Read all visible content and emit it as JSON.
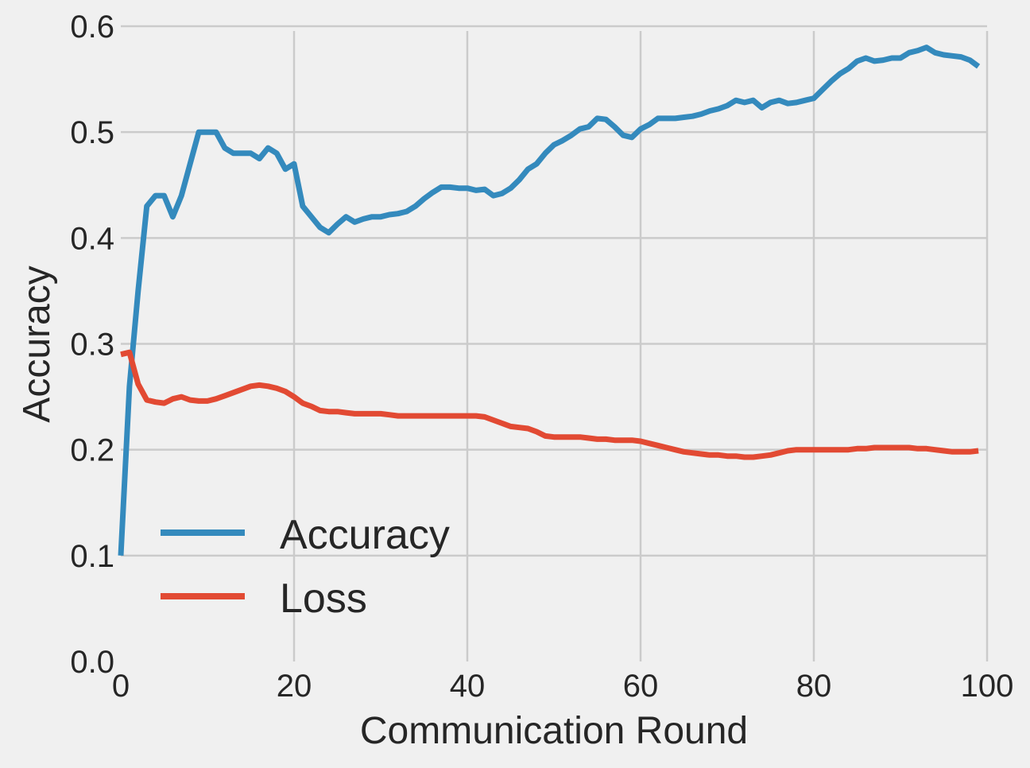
{
  "chart_data": {
    "type": "line",
    "title": "",
    "xlabel": "Communication Round",
    "ylabel": "Accuracy",
    "xlim": [
      0,
      100
    ],
    "ylim": [
      0.0,
      0.6
    ],
    "x_ticks": [
      "0",
      "20",
      "40",
      "60",
      "80",
      "100"
    ],
    "y_ticks": [
      "0.0",
      "0.1",
      "0.2",
      "0.3",
      "0.4",
      "0.5",
      "0.6"
    ],
    "grid": true,
    "legend_position": "lower-left",
    "background": "#f0f0f0",
    "series": [
      {
        "name": "Accuracy",
        "color": "#348ABD",
        "x": [
          0,
          1,
          2,
          3,
          4,
          5,
          6,
          7,
          8,
          9,
          10,
          11,
          12,
          13,
          14,
          15,
          16,
          17,
          18,
          19,
          20,
          21,
          22,
          23,
          24,
          25,
          26,
          27,
          28,
          29,
          30,
          31,
          32,
          33,
          34,
          35,
          36,
          37,
          38,
          39,
          40,
          41,
          42,
          43,
          44,
          45,
          46,
          47,
          48,
          49,
          50,
          51,
          52,
          53,
          54,
          55,
          56,
          57,
          58,
          59,
          60,
          61,
          62,
          63,
          64,
          65,
          66,
          67,
          68,
          69,
          70,
          71,
          72,
          73,
          74,
          75,
          76,
          77,
          78,
          79,
          80,
          81,
          82,
          83,
          84,
          85,
          86,
          87,
          88,
          89,
          90,
          91,
          92,
          93,
          94,
          95,
          96,
          97,
          98,
          99
        ],
        "y": [
          0.1,
          0.26,
          0.35,
          0.43,
          0.44,
          0.44,
          0.42,
          0.44,
          0.47,
          0.5,
          0.5,
          0.5,
          0.485,
          0.48,
          0.48,
          0.48,
          0.475,
          0.485,
          0.48,
          0.465,
          0.47,
          0.43,
          0.42,
          0.41,
          0.405,
          0.413,
          0.42,
          0.415,
          0.418,
          0.42,
          0.42,
          0.422,
          0.423,
          0.425,
          0.43,
          0.437,
          0.443,
          0.448,
          0.448,
          0.447,
          0.447,
          0.445,
          0.446,
          0.44,
          0.442,
          0.447,
          0.455,
          0.465,
          0.47,
          0.48,
          0.488,
          0.492,
          0.497,
          0.503,
          0.505,
          0.513,
          0.512,
          0.505,
          0.497,
          0.495,
          0.503,
          0.507,
          0.513,
          0.513,
          0.513,
          0.514,
          0.515,
          0.517,
          0.52,
          0.522,
          0.525,
          0.53,
          0.528,
          0.53,
          0.523,
          0.528,
          0.53,
          0.527,
          0.528,
          0.53,
          0.532,
          0.54,
          0.548,
          0.555,
          0.56,
          0.567,
          0.57,
          0.567,
          0.568,
          0.57,
          0.57,
          0.575,
          0.577,
          0.58,
          0.575,
          0.573,
          0.572,
          0.571,
          0.568,
          0.562
        ]
      },
      {
        "name": "Loss",
        "color": "#E24A33",
        "x": [
          0,
          1,
          2,
          3,
          4,
          5,
          6,
          7,
          8,
          9,
          10,
          11,
          12,
          13,
          14,
          15,
          16,
          17,
          18,
          19,
          20,
          21,
          22,
          23,
          24,
          25,
          26,
          27,
          28,
          29,
          30,
          31,
          32,
          33,
          34,
          35,
          36,
          37,
          38,
          39,
          40,
          41,
          42,
          43,
          44,
          45,
          46,
          47,
          48,
          49,
          50,
          51,
          52,
          53,
          54,
          55,
          56,
          57,
          58,
          59,
          60,
          61,
          62,
          63,
          64,
          65,
          66,
          67,
          68,
          69,
          70,
          71,
          72,
          73,
          74,
          75,
          76,
          77,
          78,
          79,
          80,
          81,
          82,
          83,
          84,
          85,
          86,
          87,
          88,
          89,
          90,
          91,
          92,
          93,
          94,
          95,
          96,
          97,
          98,
          99
        ],
        "y": [
          0.29,
          0.292,
          0.262,
          0.247,
          0.245,
          0.244,
          0.248,
          0.25,
          0.247,
          0.246,
          0.246,
          0.248,
          0.251,
          0.254,
          0.257,
          0.26,
          0.261,
          0.26,
          0.258,
          0.255,
          0.25,
          0.244,
          0.241,
          0.237,
          0.236,
          0.236,
          0.235,
          0.234,
          0.234,
          0.234,
          0.234,
          0.233,
          0.232,
          0.232,
          0.232,
          0.232,
          0.232,
          0.232,
          0.232,
          0.232,
          0.232,
          0.232,
          0.231,
          0.228,
          0.225,
          0.222,
          0.221,
          0.22,
          0.217,
          0.213,
          0.212,
          0.212,
          0.212,
          0.212,
          0.211,
          0.21,
          0.21,
          0.209,
          0.209,
          0.209,
          0.208,
          0.206,
          0.204,
          0.202,
          0.2,
          0.198,
          0.197,
          0.196,
          0.195,
          0.195,
          0.194,
          0.194,
          0.193,
          0.193,
          0.194,
          0.195,
          0.197,
          0.199,
          0.2,
          0.2,
          0.2,
          0.2,
          0.2,
          0.2,
          0.2,
          0.201,
          0.201,
          0.202,
          0.202,
          0.202,
          0.202,
          0.202,
          0.201,
          0.201,
          0.2,
          0.199,
          0.198,
          0.198,
          0.198,
          0.199
        ]
      }
    ]
  }
}
